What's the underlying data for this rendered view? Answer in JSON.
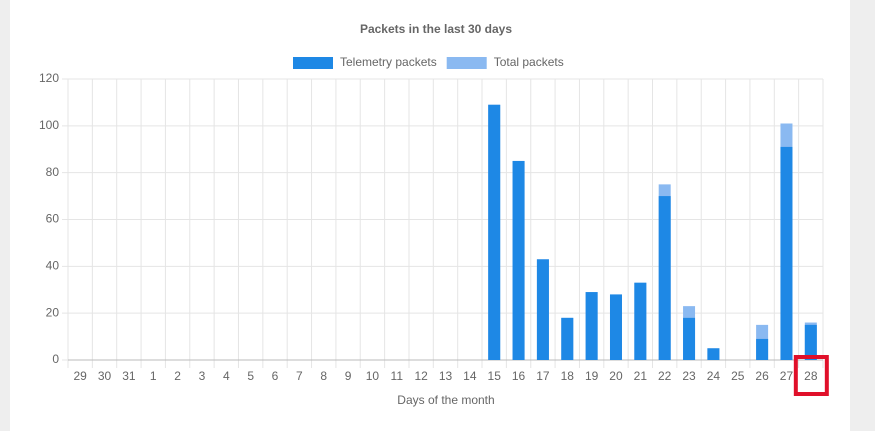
{
  "chart_data": {
    "type": "bar",
    "title": "Packets in the last 30 days",
    "x_label": "Days of the month",
    "categories": [
      "29",
      "30",
      "31",
      "1",
      "2",
      "3",
      "4",
      "5",
      "6",
      "7",
      "8",
      "9",
      "10",
      "11",
      "12",
      "13",
      "14",
      "15",
      "16",
      "17",
      "18",
      "19",
      "20",
      "21",
      "22",
      "23",
      "24",
      "25",
      "26",
      "27",
      "28"
    ],
    "series": [
      {
        "name": "Telemetry packets",
        "color": "#1e88e5",
        "values": [
          0,
          0,
          0,
          0,
          0,
          0,
          0,
          0,
          0,
          0,
          0,
          0,
          0,
          0,
          0,
          0,
          0,
          109,
          85,
          43,
          18,
          29,
          28,
          33,
          70,
          18,
          5,
          0,
          9,
          91,
          15
        ]
      },
      {
        "name": "Total packets",
        "color": "#8ab9f1",
        "values": [
          0,
          0,
          0,
          0,
          0,
          0,
          0,
          0,
          0,
          0,
          0,
          0,
          0,
          0,
          0,
          0,
          0,
          109,
          85,
          43,
          18,
          29,
          28,
          33,
          75,
          23,
          5,
          0,
          15,
          101,
          16
        ]
      }
    ],
    "ylim": [
      0,
      120
    ],
    "yticks": [
      0,
      20,
      40,
      60,
      80,
      100,
      120
    ],
    "grid": true,
    "legend": "top"
  }
}
